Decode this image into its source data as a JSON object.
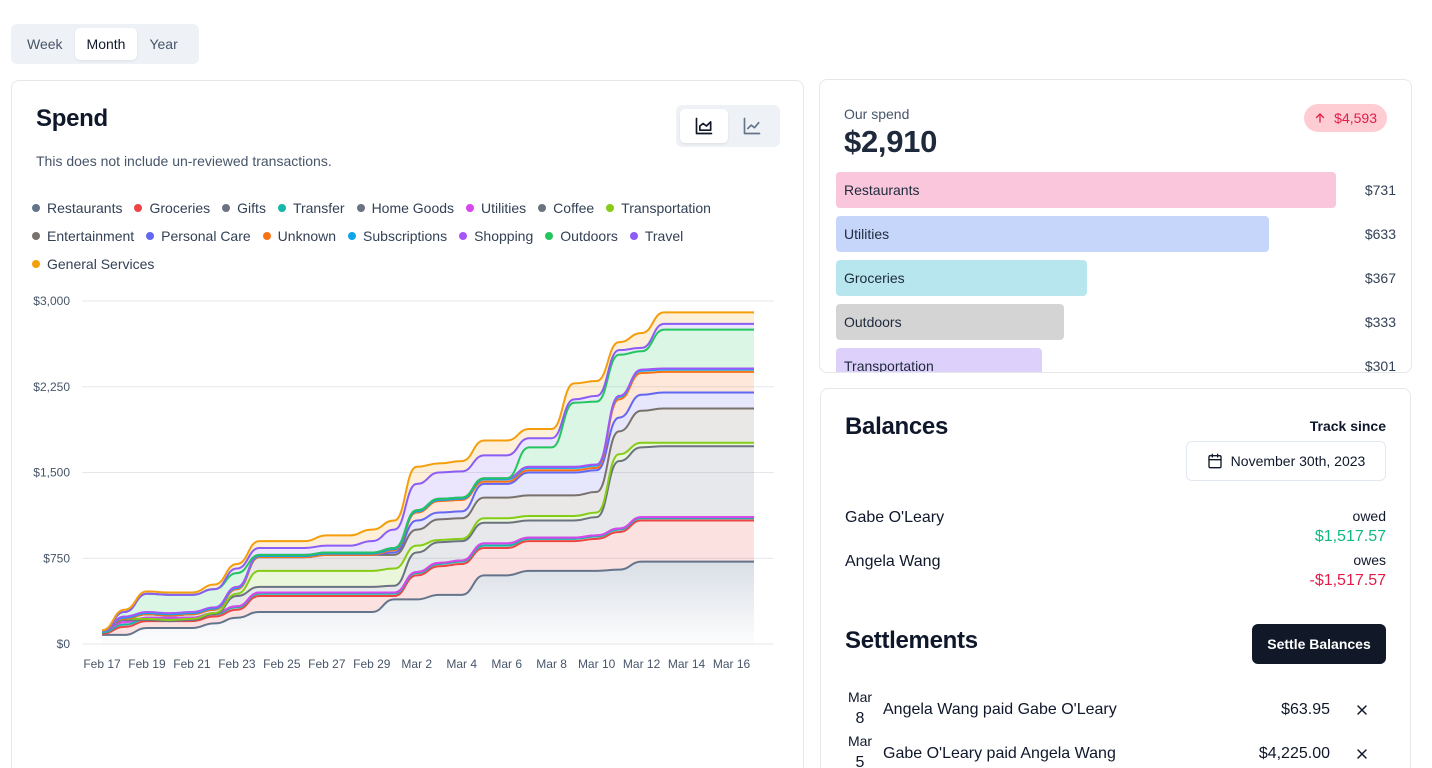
{
  "period_tabs": [
    "Week",
    "Month",
    "Year"
  ],
  "active_period": "Month",
  "spend_card": {
    "title": "Spend",
    "subtitle": "This does not include un-reviewed transactions.",
    "legend": [
      {
        "label": "Restaurants",
        "color": "#64748b"
      },
      {
        "label": "Groceries",
        "color": "#ef4444"
      },
      {
        "label": "Gifts",
        "color": "#6b7280"
      },
      {
        "label": "Transfer",
        "color": "#14b8a6"
      },
      {
        "label": "Home Goods",
        "color": "#6b7280"
      },
      {
        "label": "Utilities",
        "color": "#d946ef"
      },
      {
        "label": "Coffee",
        "color": "#6b7280"
      },
      {
        "label": "Transportation",
        "color": "#84cc16"
      },
      {
        "label": "Entertainment",
        "color": "#78716c"
      },
      {
        "label": "Personal Care",
        "color": "#6366f1"
      },
      {
        "label": "Unknown",
        "color": "#f97316"
      },
      {
        "label": "Subscriptions",
        "color": "#0ea5e9"
      },
      {
        "label": "Shopping",
        "color": "#a855f7"
      },
      {
        "label": "Outdoors",
        "color": "#22c55e"
      },
      {
        "label": "Travel",
        "color": "#8b5cf6"
      },
      {
        "label": "General Services",
        "color": "#f59e0b"
      }
    ]
  },
  "chart_data": {
    "type": "area",
    "stacked": true,
    "cumulative": true,
    "title": "Spend",
    "xlabel": "",
    "ylabel": "",
    "ylim": [
      0,
      3000
    ],
    "yticks": [
      "$0",
      "$750",
      "$1,500",
      "$2,250",
      "$3,000"
    ],
    "ytick_values": [
      0,
      750,
      1500,
      2250,
      3000
    ],
    "xticks": [
      "Feb 17",
      "Feb 19",
      "Feb 21",
      "Feb 23",
      "Feb 25",
      "Feb 27",
      "Feb 29",
      "Mar 2",
      "Mar 4",
      "Mar 6",
      "Mar 8",
      "Mar 10",
      "Mar 12",
      "Mar 14",
      "Mar 16"
    ],
    "x": [
      "Feb 17",
      "Feb 18",
      "Feb 19",
      "Feb 20",
      "Feb 21",
      "Feb 22",
      "Feb 23",
      "Feb 24",
      "Feb 25",
      "Feb 26",
      "Feb 27",
      "Feb 28",
      "Feb 29",
      "Mar 1",
      "Mar 2",
      "Mar 3",
      "Mar 4",
      "Mar 5",
      "Mar 6",
      "Mar 7",
      "Mar 8",
      "Mar 9",
      "Mar 10",
      "Mar 11",
      "Mar 12",
      "Mar 13",
      "Mar 14",
      "Mar 15",
      "Mar 16",
      "Mar 17"
    ],
    "cumulative_tops": [
      {
        "name": "Restaurants",
        "color": "#64748b",
        "values": [
          80,
          80,
          140,
          140,
          140,
          180,
          230,
          280,
          280,
          280,
          280,
          280,
          280,
          390,
          390,
          430,
          430,
          600,
          600,
          640,
          640,
          640,
          640,
          650,
          720,
          720,
          720,
          720,
          720,
          720
        ]
      },
      {
        "name": "Groceries",
        "color": "#ef4444",
        "values": [
          90,
          150,
          200,
          200,
          200,
          240,
          300,
          420,
          420,
          420,
          420,
          420,
          420,
          420,
          600,
          680,
          700,
          840,
          840,
          900,
          900,
          900,
          920,
          980,
          1080,
          1080,
          1080,
          1080,
          1080,
          1080
        ]
      },
      {
        "name": "Transfer",
        "color": "#14b8a6",
        "values": [
          100,
          170,
          220,
          220,
          220,
          260,
          320,
          440,
          440,
          440,
          440,
          440,
          440,
          440,
          620,
          700,
          720,
          860,
          860,
          920,
          920,
          920,
          940,
          1000,
          1100,
          1100,
          1100,
          1100,
          1100,
          1100
        ]
      },
      {
        "name": "Home Goods",
        "color": "#6b7280",
        "values": [
          110,
          190,
          230,
          230,
          230,
          270,
          330,
          450,
          450,
          450,
          450,
          450,
          450,
          450,
          630,
          710,
          730,
          880,
          880,
          930,
          930,
          930,
          950,
          1010,
          1110,
          1110,
          1110,
          1110,
          1110,
          1110
        ]
      },
      {
        "name": "Utilities",
        "color": "#d946ef",
        "values": [
          110,
          190,
          230,
          230,
          230,
          270,
          330,
          450,
          450,
          450,
          450,
          450,
          450,
          450,
          630,
          710,
          730,
          880,
          880,
          930,
          930,
          930,
          950,
          1010,
          1110,
          1110,
          1110,
          1110,
          1110,
          1110
        ]
      },
      {
        "name": "Coffee",
        "color": "#6b7280",
        "values": [
          110,
          210,
          210,
          200,
          210,
          260,
          420,
          500,
          500,
          500,
          500,
          500,
          500,
          510,
          800,
          890,
          900,
          1060,
          1060,
          1080,
          1080,
          1080,
          1110,
          1600,
          1720,
          1730,
          1730,
          1730,
          1730,
          1730
        ]
      },
      {
        "name": "Transportation",
        "color": "#84cc16",
        "values": [
          110,
          220,
          220,
          210,
          220,
          270,
          440,
          640,
          640,
          640,
          640,
          640,
          640,
          660,
          860,
          910,
          920,
          1100,
          1100,
          1120,
          1120,
          1120,
          1150,
          1660,
          1760,
          1760,
          1760,
          1760,
          1760,
          1760
        ]
      },
      {
        "name": "Entertainment",
        "color": "#78716c",
        "values": [
          110,
          220,
          260,
          250,
          260,
          300,
          480,
          760,
          760,
          760,
          780,
          780,
          780,
          780,
          1000,
          1090,
          1100,
          1280,
          1280,
          1300,
          1300,
          1300,
          1330,
          1860,
          2040,
          2060,
          2060,
          2060,
          2060,
          2060
        ]
      },
      {
        "name": "Personal Care",
        "color": "#6366f1",
        "values": [
          110,
          220,
          260,
          250,
          260,
          300,
          480,
          760,
          760,
          760,
          780,
          780,
          780,
          800,
          1080,
          1150,
          1160,
          1400,
          1400,
          1500,
          1500,
          1500,
          1520,
          1980,
          2180,
          2200,
          2200,
          2200,
          2200,
          2200
        ]
      },
      {
        "name": "Unknown",
        "color": "#f97316",
        "values": [
          110,
          220,
          260,
          250,
          260,
          300,
          480,
          760,
          760,
          760,
          780,
          780,
          780,
          820,
          1150,
          1250,
          1260,
          1420,
          1420,
          1520,
          1520,
          1520,
          1540,
          2140,
          2370,
          2380,
          2380,
          2380,
          2380,
          2380
        ]
      },
      {
        "name": "Subscriptions",
        "color": "#0ea5e9",
        "values": [
          110,
          230,
          270,
          260,
          270,
          310,
          490,
          770,
          770,
          770,
          790,
          790,
          790,
          830,
          1160,
          1260,
          1270,
          1440,
          1440,
          1540,
          1540,
          1540,
          1560,
          2160,
          2390,
          2400,
          2400,
          2400,
          2400,
          2400
        ]
      },
      {
        "name": "Shopping",
        "color": "#a855f7",
        "values": [
          115,
          240,
          280,
          270,
          280,
          320,
          500,
          780,
          780,
          780,
          800,
          800,
          800,
          840,
          1170,
          1270,
          1280,
          1450,
          1450,
          1550,
          1550,
          1550,
          1570,
          2170,
          2400,
          2410,
          2410,
          2410,
          2410,
          2410
        ]
      },
      {
        "name": "Outdoors",
        "color": "#22c55e",
        "values": [
          118,
          280,
          440,
          430,
          430,
          480,
          620,
          780,
          780,
          780,
          800,
          800,
          800,
          840,
          1170,
          1270,
          1280,
          1450,
          1450,
          1720,
          1720,
          2110,
          2120,
          2530,
          2560,
          2750,
          2750,
          2750,
          2750,
          2750
        ]
      },
      {
        "name": "Travel",
        "color": "#8b5cf6",
        "values": [
          118,
          280,
          440,
          430,
          430,
          480,
          660,
          840,
          840,
          840,
          860,
          860,
          900,
          1000,
          1400,
          1500,
          1510,
          1650,
          1650,
          1800,
          1800,
          2140,
          2170,
          2570,
          2590,
          2800,
          2800,
          2800,
          2800,
          2800
        ]
      },
      {
        "name": "General Services",
        "color": "#f59e0b",
        "values": [
          120,
          300,
          460,
          450,
          450,
          520,
          700,
          900,
          900,
          900,
          950,
          950,
          1000,
          1080,
          1550,
          1580,
          1600,
          1780,
          1780,
          1880,
          1880,
          2280,
          2300,
          2640,
          2720,
          2900,
          2900,
          2900,
          2900,
          2900
        ]
      }
    ]
  },
  "our_spend": {
    "label": "Our spend",
    "total": "$2,910",
    "delta": "$4,593",
    "categories": [
      {
        "name": "Restaurants",
        "amount": "$731",
        "value": 731,
        "color": "#f9c6dc"
      },
      {
        "name": "Utilities",
        "amount": "$633",
        "value": 633,
        "color": "#c6d6fb"
      },
      {
        "name": "Groceries",
        "amount": "$367",
        "value": 367,
        "color": "#b7e6ef"
      },
      {
        "name": "Outdoors",
        "amount": "$333",
        "value": 333,
        "color": "#d4d4d4"
      },
      {
        "name": "Transportation",
        "amount": "$301",
        "value": 301,
        "color": "#ddd0fb"
      }
    ]
  },
  "balances": {
    "title": "Balances",
    "track_label": "Track since",
    "track_date": "November 30th, 2023",
    "people": [
      {
        "name": "Gabe O'Leary",
        "status": "owed",
        "amount": "$1,517.57",
        "color": "#10b981"
      },
      {
        "name": "Angela Wang",
        "status": "owes",
        "amount": "-$1,517.57",
        "color": "#e11d48"
      }
    ]
  },
  "settlements": {
    "title": "Settlements",
    "button_label": "Settle Balances",
    "items": [
      {
        "month": "Mar",
        "day": "8",
        "description": "Angela Wang paid Gabe O'Leary",
        "amount": "$63.95"
      },
      {
        "month": "Mar",
        "day": "5",
        "description": "Gabe O'Leary paid Angela Wang",
        "amount": "$4,225.00"
      }
    ]
  }
}
